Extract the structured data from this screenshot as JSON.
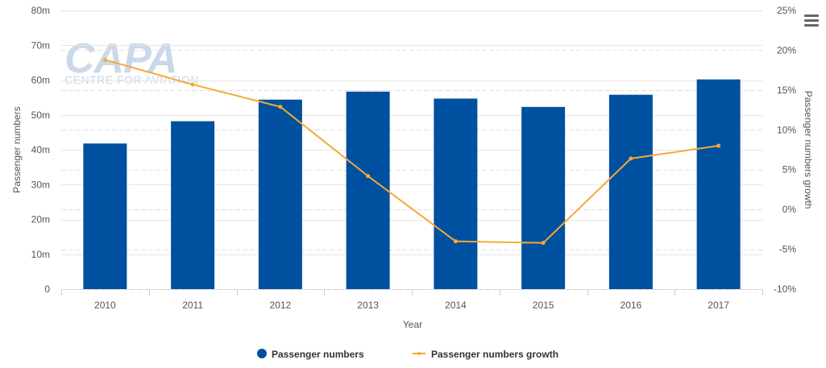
{
  "menu_icon": "hamburger-menu-icon",
  "watermark": {
    "logo": "CAPA",
    "tagline": "CENTRE FOR AVIATION"
  },
  "chart_data": {
    "type": "bar+line",
    "title": "",
    "xlabel": "Year",
    "ylabel_left": "Passenger numbers",
    "ylabel_right": "Passenger numbers growth",
    "categories": [
      "2010",
      "2011",
      "2012",
      "2013",
      "2014",
      "2015",
      "2016",
      "2017"
    ],
    "left_axis": {
      "min": 0,
      "max": 80,
      "ticks": [
        "0",
        "10m",
        "20m",
        "30m",
        "40m",
        "50m",
        "60m",
        "70m",
        "80m"
      ]
    },
    "right_axis": {
      "min": -10,
      "max": 25,
      "ticks": [
        "-10%",
        "-5%",
        "0%",
        "5%",
        "10%",
        "15%",
        "20%",
        "25%"
      ]
    },
    "series": [
      {
        "name": "Passenger numbers",
        "type": "bar",
        "axis": "left",
        "unit": "m",
        "color": "#0050a0",
        "values": [
          41.8,
          48.2,
          54.4,
          56.7,
          54.7,
          52.3,
          55.8,
          60.2
        ]
      },
      {
        "name": "Passenger numbers growth",
        "type": "line",
        "axis": "right",
        "unit": "%",
        "color": "#f7a934",
        "values": [
          18.8,
          15.7,
          12.9,
          4.2,
          -4.0,
          -4.2,
          6.4,
          8.0
        ]
      }
    ],
    "legend_position": "bottom-center",
    "grid": true
  }
}
